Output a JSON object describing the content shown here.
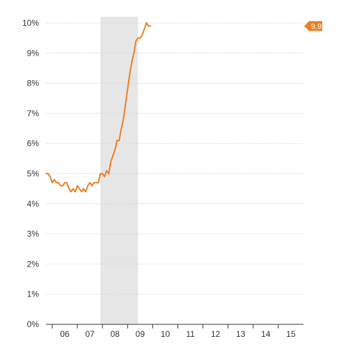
{
  "chart_data": {
    "type": "line",
    "title": "",
    "xlabel": "",
    "ylabel": "",
    "x_range": [
      "2005-10",
      "2015-12"
    ],
    "ylim": [
      0,
      10
    ],
    "yticks": [
      0,
      1,
      2,
      3,
      4,
      5,
      6,
      7,
      8,
      9,
      10
    ],
    "ytick_labels": [
      "0%",
      "1%",
      "2%",
      "3%",
      "4%",
      "5%",
      "6%",
      "7%",
      "8%",
      "9%",
      "10%"
    ],
    "xtick_labels": [
      "06",
      "07",
      "08",
      "09",
      "10",
      "11",
      "12",
      "13",
      "14",
      "15"
    ],
    "grid": "horizontal",
    "shaded_region": {
      "start": "2007-12",
      "end": "2009-06",
      "color": "#e6e6e6"
    },
    "series": [
      {
        "color": "#f07d1f",
        "points": [
          [
            "2005-10",
            5.0
          ],
          [
            "2005-11",
            5.0
          ],
          [
            "2005-12",
            4.9
          ],
          [
            "2006-01",
            4.7
          ],
          [
            "2006-02",
            4.8
          ],
          [
            "2006-03",
            4.7
          ],
          [
            "2006-04",
            4.7
          ],
          [
            "2006-05",
            4.6
          ],
          [
            "2006-06",
            4.6
          ],
          [
            "2006-07",
            4.7
          ],
          [
            "2006-08",
            4.7
          ],
          [
            "2006-09",
            4.5
          ],
          [
            "2006-10",
            4.4
          ],
          [
            "2006-11",
            4.5
          ],
          [
            "2006-12",
            4.4
          ],
          [
            "2007-01",
            4.6
          ],
          [
            "2007-02",
            4.5
          ],
          [
            "2007-03",
            4.4
          ],
          [
            "2007-04",
            4.5
          ],
          [
            "2007-05",
            4.4
          ],
          [
            "2007-06",
            4.6
          ],
          [
            "2007-07",
            4.7
          ],
          [
            "2007-08",
            4.6
          ],
          [
            "2007-09",
            4.7
          ],
          [
            "2007-10",
            4.7
          ],
          [
            "2007-11",
            4.7
          ],
          [
            "2007-12",
            5.0
          ],
          [
            "2008-01",
            5.0
          ],
          [
            "2008-02",
            4.9
          ],
          [
            "2008-03",
            5.1
          ],
          [
            "2008-04",
            5.0
          ],
          [
            "2008-05",
            5.4
          ],
          [
            "2008-06",
            5.6
          ],
          [
            "2008-07",
            5.8
          ],
          [
            "2008-08",
            6.1
          ],
          [
            "2008-09",
            6.1
          ],
          [
            "2008-10",
            6.5
          ],
          [
            "2008-11",
            6.8
          ],
          [
            "2008-12",
            7.3
          ],
          [
            "2009-01",
            7.8
          ],
          [
            "2009-02",
            8.3
          ],
          [
            "2009-03",
            8.7
          ],
          [
            "2009-04",
            9.0
          ],
          [
            "2009-05",
            9.4
          ],
          [
            "2009-06",
            9.5
          ],
          [
            "2009-07",
            9.5
          ],
          [
            "2009-08",
            9.6
          ],
          [
            "2009-09",
            9.8
          ],
          [
            "2009-10",
            10.0
          ],
          [
            "2009-11",
            9.9
          ],
          [
            "2009-12",
            9.9
          ]
        ]
      }
    ],
    "callout": {
      "value": 9.9,
      "label": "9.9",
      "color": "#f07d1f"
    }
  }
}
